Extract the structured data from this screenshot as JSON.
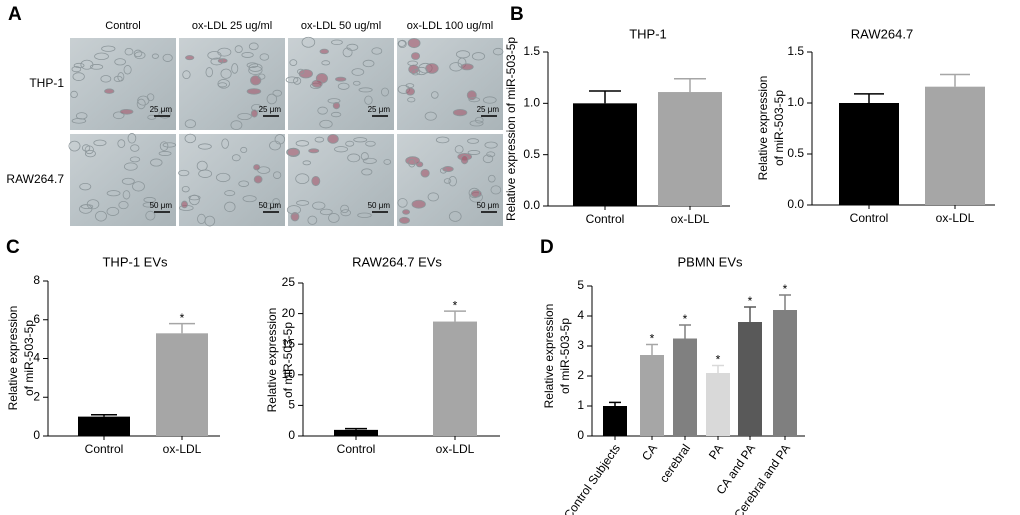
{
  "panel_labels": [
    "A",
    "B",
    "C",
    "D"
  ],
  "micrographs": {
    "columns": [
      "Control",
      "ox-LDL 25 ug/ml",
      "ox-LDL 50 ug/ml",
      "ox-LDL 100 ug/ml"
    ],
    "rows": [
      {
        "label": "THP-1",
        "scale": "25 μm"
      },
      {
        "label": "RAW264.7",
        "scale": "50 μm"
      }
    ]
  },
  "chart_data": [
    {
      "type": "bar",
      "title": "THP-1",
      "y_label": [
        "Relative expression of miR-503-5p"
      ],
      "categories": [
        "Control",
        "ox-LDL"
      ],
      "values": [
        1.0,
        1.11
      ],
      "errors": [
        0.12,
        0.13
      ],
      "colors": [
        "#000000",
        "#a6a6a6"
      ],
      "ylim": [
        0,
        1.5
      ],
      "yticks": [
        {
          "value": 0,
          "label": "0.0"
        },
        0.5,
        {
          "value": 1,
          "label": "1.0"
        },
        1.5
      ]
    },
    {
      "type": "bar",
      "title": "RAW264.7",
      "y_label": [
        "Relative expression",
        "of miR-503-5p"
      ],
      "categories": [
        "Control",
        "ox-LDL"
      ],
      "values": [
        1.0,
        1.16
      ],
      "errors": [
        0.09,
        0.12
      ],
      "colors": [
        "#000000",
        "#a6a6a6"
      ],
      "ylim": [
        0,
        1.5
      ],
      "yticks": [
        {
          "value": 0,
          "label": "0.0"
        },
        0.5,
        {
          "value": 1,
          "label": "1.0"
        },
        1.5
      ]
    },
    {
      "type": "bar",
      "title": "THP-1 EVs",
      "y_label": [
        "Relative expression",
        "of miR-503-5p"
      ],
      "categories": [
        "Control",
        "ox-LDL"
      ],
      "values": [
        1.0,
        5.3
      ],
      "errors": [
        0.1,
        0.5
      ],
      "significance": [
        null,
        "*"
      ],
      "colors": [
        "#000000",
        "#a6a6a6"
      ],
      "ylim": [
        0,
        8
      ],
      "yticks": [
        0,
        2,
        4,
        6,
        8
      ]
    },
    {
      "type": "bar",
      "title": "RAW264.7 EVs",
      "y_label": [
        "Relative expression",
        "of miR-503-5p"
      ],
      "categories": [
        "Control",
        "ox-LDL"
      ],
      "values": [
        1.0,
        18.7
      ],
      "errors": [
        0.2,
        1.7
      ],
      "significance": [
        null,
        "*"
      ],
      "colors": [
        "#000000",
        "#a6a6a6"
      ],
      "ylim": [
        0,
        25
      ],
      "yticks": [
        0,
        5,
        10,
        15,
        20,
        25
      ]
    },
    {
      "type": "bar",
      "title": "PBMN EVs",
      "y_label": [
        "Relative expression",
        "of miR-503-5p"
      ],
      "categories": [
        "Control Subjects",
        "CA",
        "cerebral",
        "PA",
        "CA and PA",
        "Cerebral and PA"
      ],
      "values": [
        1.0,
        2.7,
        3.25,
        2.1,
        3.8,
        4.2
      ],
      "errors": [
        0.12,
        0.35,
        0.45,
        0.25,
        0.5,
        0.5
      ],
      "significance": [
        null,
        "*",
        "*",
        "*",
        "*",
        "*"
      ],
      "colors": [
        "#000000",
        "#a6a6a6",
        "#808080",
        "#d9d9d9",
        "#595959",
        "#7f7f7f"
      ],
      "ylim": [
        0,
        5
      ],
      "yticks": [
        0,
        1,
        2,
        3,
        4,
        5
      ]
    }
  ]
}
